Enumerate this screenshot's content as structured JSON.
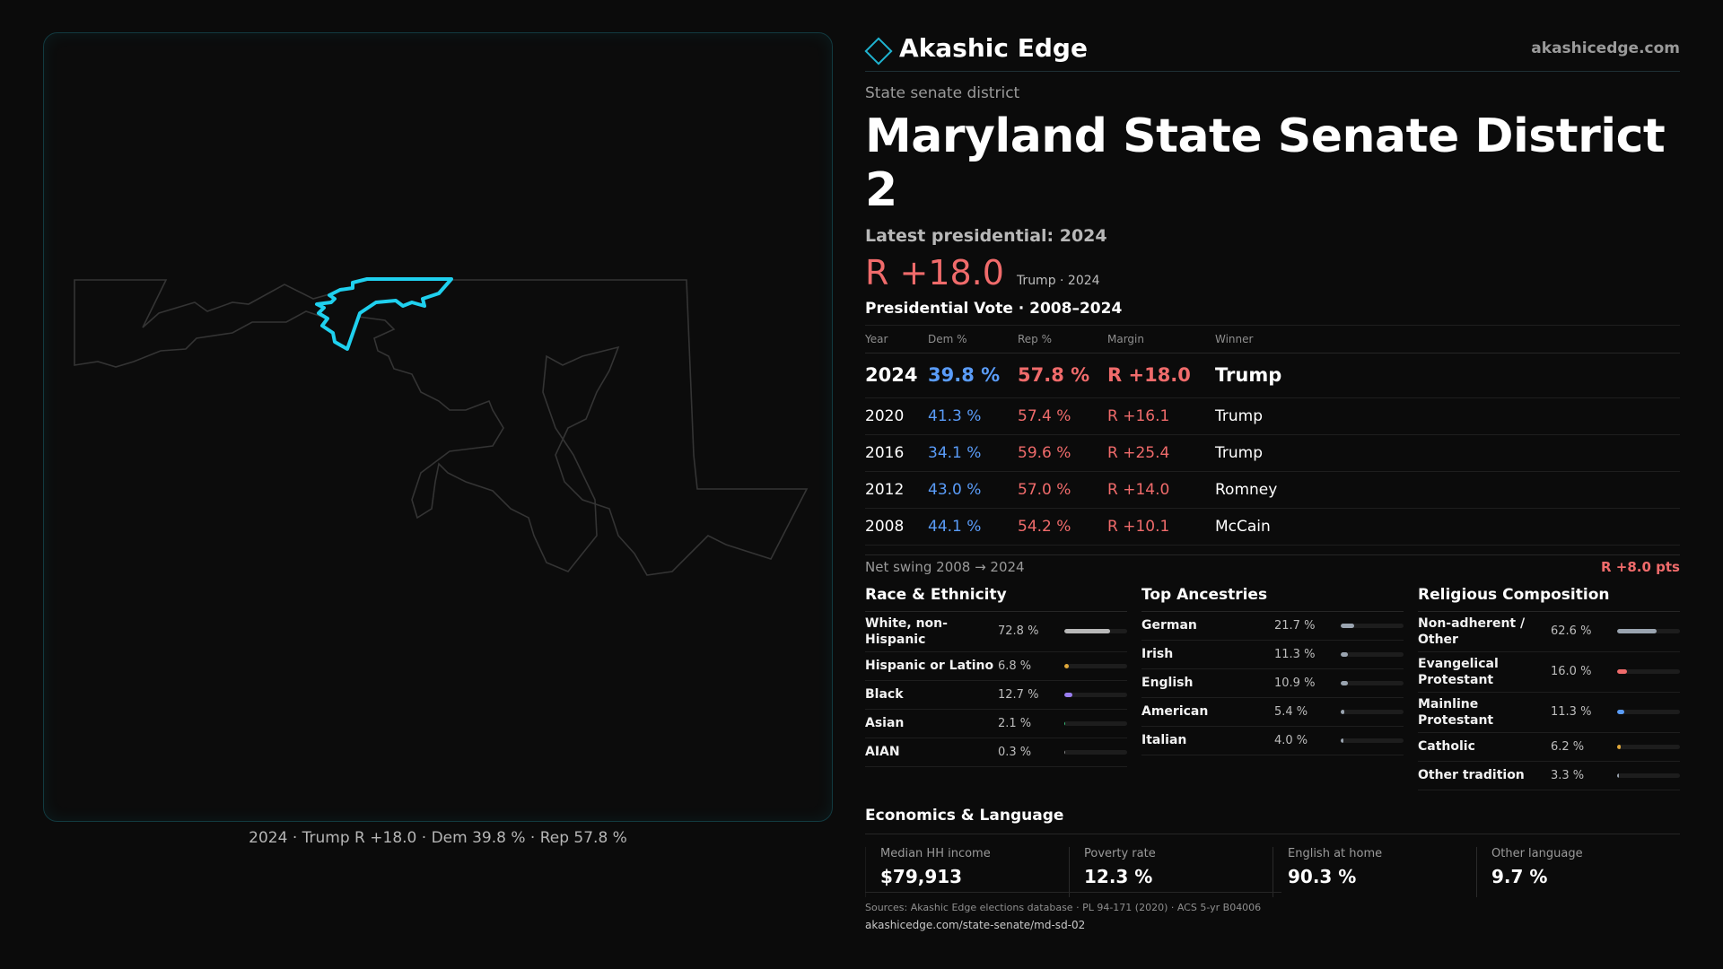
{
  "brand": {
    "name": "Akashic Edge",
    "url": "akashicedge.com"
  },
  "header": {
    "kind": "State senate district",
    "title": "Maryland State Senate District 2",
    "latest": "Latest presidential: 2024",
    "margin": "R +18.0",
    "margin_sub": "Trump · 2024"
  },
  "map": {
    "caption": "2024 · Trump R +18.0 · Dem 39.8 % · Rep 57.8 %",
    "highlight_color": "#1fd0ee"
  },
  "vote": {
    "title": "Presidential Vote · 2008–2024",
    "headers": {
      "year": "Year",
      "dem": "Dem %",
      "rep": "Rep %",
      "margin": "Margin",
      "winner": "Winner"
    },
    "rows": [
      {
        "year": "2024",
        "dem": "39.8 %",
        "rep": "57.8 %",
        "margin": "R +18.0",
        "winner": "Trump"
      },
      {
        "year": "2020",
        "dem": "41.3 %",
        "rep": "57.4 %",
        "margin": "R +16.1",
        "winner": "Trump"
      },
      {
        "year": "2016",
        "dem": "34.1 %",
        "rep": "59.6 %",
        "margin": "R +25.4",
        "winner": "Trump"
      },
      {
        "year": "2012",
        "dem": "43.0 %",
        "rep": "57.0 %",
        "margin": "R +14.0",
        "winner": "Romney"
      },
      {
        "year": "2008",
        "dem": "44.1 %",
        "rep": "54.2 %",
        "margin": "R +10.1",
        "winner": "McCain"
      }
    ],
    "swing_label": "Net swing 2008 → 2024",
    "swing_value": "R +8.0 pts"
  },
  "race": {
    "title": "Race & Ethnicity",
    "items": [
      {
        "label": "White, non-Hispanic",
        "value": "72.8 %",
        "pct": 72.8,
        "color": "#b8b8b8"
      },
      {
        "label": "Hispanic or Latino",
        "value": "6.8 %",
        "pct": 6.8,
        "color": "#e0a83a"
      },
      {
        "label": "Black",
        "value": "12.7 %",
        "pct": 12.7,
        "color": "#9a7ef0"
      },
      {
        "label": "Asian",
        "value": "2.1 %",
        "pct": 2.1,
        "color": "#3ac07a"
      },
      {
        "label": "AIAN",
        "value": "0.3 %",
        "pct": 0.3,
        "color": "#888888"
      }
    ]
  },
  "ancestry": {
    "title": "Top Ancestries",
    "items": [
      {
        "label": "German",
        "value": "21.7 %",
        "pct": 21.7,
        "color": "#9aa4b0"
      },
      {
        "label": "Irish",
        "value": "11.3 %",
        "pct": 11.3,
        "color": "#9aa4b0"
      },
      {
        "label": "English",
        "value": "10.9 %",
        "pct": 10.9,
        "color": "#9aa4b0"
      },
      {
        "label": "American",
        "value": "5.4 %",
        "pct": 5.4,
        "color": "#9aa4b0"
      },
      {
        "label": "Italian",
        "value": "4.0 %",
        "pct": 4.0,
        "color": "#9aa4b0"
      }
    ]
  },
  "religion": {
    "title": "Religious Composition",
    "items": [
      {
        "label": "Non-adherent / Other",
        "value": "62.6 %",
        "pct": 62.6,
        "color": "#9aa4b0"
      },
      {
        "label": "Evangelical Protestant",
        "value": "16.0 %",
        "pct": 16.0,
        "color": "#f06b6b"
      },
      {
        "label": "Mainline Protestant",
        "value": "11.3 %",
        "pct": 11.3,
        "color": "#5a9cf8"
      },
      {
        "label": "Catholic",
        "value": "6.2 %",
        "pct": 6.2,
        "color": "#e0a83a"
      },
      {
        "label": "Other tradition",
        "value": "3.3 %",
        "pct": 3.3,
        "color": "#9aa4b0"
      }
    ]
  },
  "economics": {
    "title": "Economics & Language",
    "items": [
      {
        "label": "Median HH income",
        "value": "$79,913"
      },
      {
        "label": "Poverty rate",
        "value": "12.3 %"
      },
      {
        "label": "English at home",
        "value": "90.3 %"
      },
      {
        "label": "Other language",
        "value": "9.7 %"
      }
    ]
  },
  "footer": {
    "sources": "Sources: Akashic Edge elections database · PL 94-171 (2020) · ACS 5-yr B04006",
    "permalink": "akashicedge.com/state-senate/md-sd-02"
  }
}
